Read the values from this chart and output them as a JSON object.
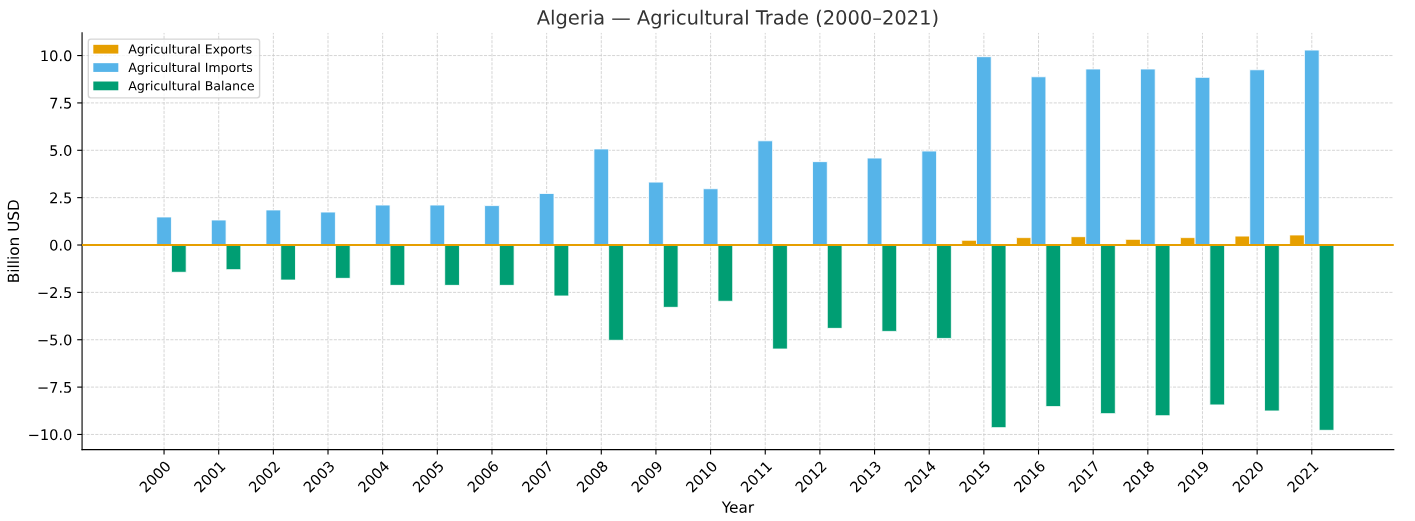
{
  "chart_data": {
    "type": "bar",
    "title": "Algeria — Agricultural Trade (2000–2021)",
    "xlabel": "Year",
    "ylabel": "Billion USD",
    "categories": [
      "2000",
      "2001",
      "2002",
      "2003",
      "2004",
      "2005",
      "2006",
      "2007",
      "2008",
      "2009",
      "2010",
      "2011",
      "2012",
      "2013",
      "2014",
      "2015",
      "2016",
      "2017",
      "2018",
      "2019",
      "2020",
      "2021"
    ],
    "series": [
      {
        "name": "Agricultural Exports",
        "color": "#e69f00",
        "values": [
          0.02,
          0.02,
          0.02,
          0.02,
          0.02,
          0.02,
          0.02,
          0.02,
          0.03,
          0.03,
          0.03,
          0.04,
          0.04,
          0.05,
          0.06,
          0.25,
          0.39,
          0.44,
          0.3,
          0.39,
          0.47,
          0.53
        ]
      },
      {
        "name": "Agricultural Imports",
        "color": "#56b4e9",
        "values": [
          1.48,
          1.32,
          1.85,
          1.74,
          2.11,
          2.11,
          2.08,
          2.72,
          5.07,
          3.32,
          2.97,
          5.5,
          4.4,
          4.59,
          4.96,
          9.94,
          8.88,
          9.29,
          9.29,
          8.85,
          9.25,
          10.29
        ]
      },
      {
        "name": "Agricultural Balance",
        "color": "#009e73",
        "values": [
          -1.44,
          -1.3,
          -1.85,
          -1.76,
          -2.13,
          -2.13,
          -2.13,
          -2.69,
          -5.03,
          -3.29,
          -2.97,
          -5.49,
          -4.4,
          -4.56,
          -4.93,
          -9.64,
          -8.53,
          -8.9,
          -9.01,
          -8.44,
          -8.76,
          -9.78
        ]
      }
    ],
    "ylim": [
      -10.8,
      11.2
    ],
    "yticks": [
      {
        "value": -10,
        "label": "−10.0"
      },
      {
        "value": -7.5,
        "label": "−7.5"
      },
      {
        "value": -5,
        "label": "−5.0"
      },
      {
        "value": -2.5,
        "label": "−2.5"
      },
      {
        "value": 0,
        "label": "0.0"
      },
      {
        "value": 2.5,
        "label": "2.5"
      },
      {
        "value": 5,
        "label": "5.0"
      },
      {
        "value": 7.5,
        "label": "7.5"
      },
      {
        "value": 10,
        "label": "10.0"
      }
    ],
    "ref_lines": [
      {
        "axis": "y",
        "value": 0,
        "color": "#e69f00",
        "line_style": "solid"
      }
    ],
    "grid": true,
    "legend": "top left"
  }
}
